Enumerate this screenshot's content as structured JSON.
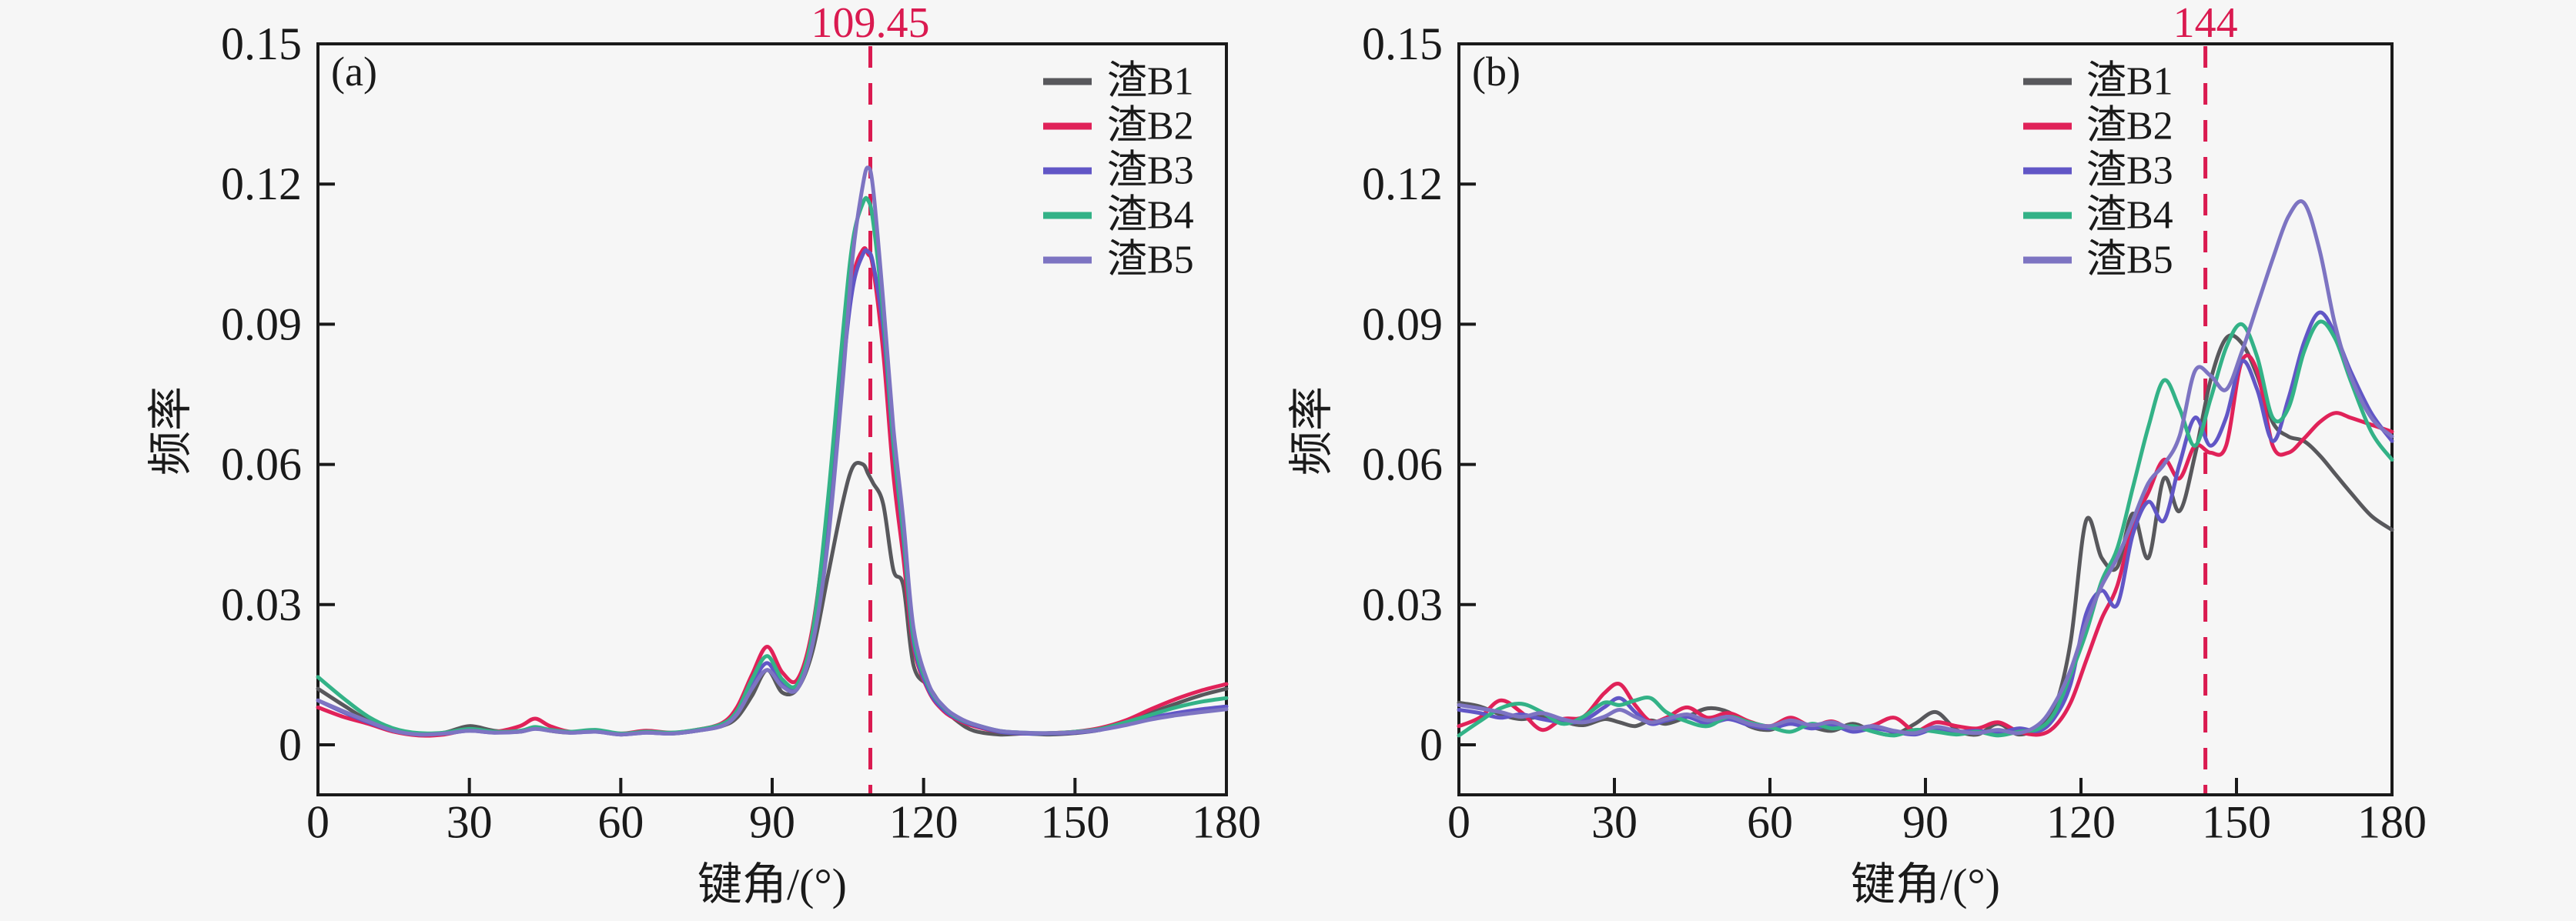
{
  "ui": {
    "background": "#f6f6f6",
    "text_color": "#1a1a1a",
    "frame_color": "#1a1a1a",
    "reference_line_color": "#da1a50"
  },
  "chart_data": [
    {
      "type": "line",
      "panel_label": "(a)",
      "xlabel": "键角/(°)",
      "ylabel": "频率",
      "xlim": [
        0,
        180
      ],
      "ylim": [
        -0.011,
        0.15
      ],
      "x_ticks": [
        0,
        30,
        60,
        90,
        120,
        150,
        180
      ],
      "y_ticks": [
        0,
        0.03,
        0.06,
        0.09,
        0.12,
        0.15
      ],
      "y_tick_labels": [
        "0",
        "0.03",
        "0.06",
        "0.09",
        "0.12",
        "0.15"
      ],
      "grid": false,
      "legend_position": "upper-right-inside",
      "annotation": {
        "text": "109.45",
        "x": 109.45,
        "color": "#da1a50",
        "style": "dashed-vertical-line"
      },
      "x": [
        0,
        5,
        10,
        15,
        20,
        25,
        30,
        35,
        40,
        43,
        46,
        50,
        55,
        60,
        65,
        70,
        75,
        80,
        83,
        86,
        89,
        92,
        95,
        98,
        101,
        104,
        106,
        108,
        109,
        110,
        112,
        114,
        116,
        118,
        121,
        124,
        127,
        130,
        135,
        140,
        145,
        150,
        155,
        160,
        165,
        170,
        175,
        180
      ],
      "series": [
        {
          "name": "渣B1",
          "color": "#58585c",
          "values": [
            0.012,
            0.0085,
            0.0052,
            0.003,
            0.0022,
            0.0026,
            0.004,
            0.003,
            0.0028,
            0.0036,
            0.003,
            0.0026,
            0.003,
            0.0022,
            0.0028,
            0.0024,
            0.003,
            0.004,
            0.0058,
            0.0105,
            0.016,
            0.0112,
            0.012,
            0.02,
            0.036,
            0.052,
            0.0595,
            0.06,
            0.058,
            0.056,
            0.0515,
            0.0375,
            0.034,
            0.017,
            0.0125,
            0.0078,
            0.0048,
            0.003,
            0.0022,
            0.0024,
            0.0022,
            0.0025,
            0.0032,
            0.0048,
            0.0068,
            0.0088,
            0.0106,
            0.012
          ]
        },
        {
          "name": "渣B2",
          "color": "#e02259",
          "values": [
            0.008,
            0.006,
            0.0045,
            0.0028,
            0.002,
            0.0022,
            0.0032,
            0.0028,
            0.004,
            0.0056,
            0.004,
            0.0028,
            0.003,
            0.0024,
            0.003,
            0.0026,
            0.0032,
            0.0046,
            0.008,
            0.015,
            0.021,
            0.0155,
            0.014,
            0.025,
            0.05,
            0.083,
            0.1,
            0.106,
            0.105,
            0.102,
            0.084,
            0.058,
            0.04,
            0.021,
            0.0115,
            0.0072,
            0.0052,
            0.004,
            0.0028,
            0.0024,
            0.0025,
            0.0028,
            0.0036,
            0.0052,
            0.0076,
            0.0098,
            0.0116,
            0.013
          ]
        },
        {
          "name": "渣B3",
          "color": "#6156c6",
          "values": [
            0.0095,
            0.007,
            0.0048,
            0.003,
            0.0022,
            0.0024,
            0.003,
            0.0026,
            0.003,
            0.0036,
            0.0032,
            0.0026,
            0.0028,
            0.0022,
            0.0026,
            0.0024,
            0.003,
            0.0042,
            0.007,
            0.013,
            0.0175,
            0.013,
            0.0125,
            0.023,
            0.046,
            0.08,
            0.098,
            0.105,
            0.1055,
            0.103,
            0.089,
            0.064,
            0.044,
            0.022,
            0.0118,
            0.0075,
            0.0054,
            0.0042,
            0.0028,
            0.0024,
            0.0024,
            0.0026,
            0.0032,
            0.0044,
            0.0058,
            0.0068,
            0.0076,
            0.0082
          ]
        },
        {
          "name": "渣B4",
          "color": "#33b287",
          "values": [
            0.0145,
            0.01,
            0.006,
            0.0035,
            0.0025,
            0.0026,
            0.0034,
            0.0028,
            0.003,
            0.0038,
            0.0032,
            0.0028,
            0.0032,
            0.0024,
            0.0028,
            0.0026,
            0.0032,
            0.0044,
            0.0072,
            0.014,
            0.019,
            0.014,
            0.013,
            0.024,
            0.052,
            0.088,
            0.108,
            0.116,
            0.1165,
            0.112,
            0.092,
            0.065,
            0.045,
            0.023,
            0.0125,
            0.008,
            0.0056,
            0.0044,
            0.003,
            0.0026,
            0.0025,
            0.0028,
            0.0034,
            0.0048,
            0.0064,
            0.008,
            0.0092,
            0.01
          ]
        },
        {
          "name": "渣B5",
          "color": "#7d74c2",
          "values": [
            0.0095,
            0.0072,
            0.005,
            0.003,
            0.0022,
            0.0024,
            0.003,
            0.0026,
            0.0028,
            0.0034,
            0.003,
            0.0026,
            0.0028,
            0.0022,
            0.0026,
            0.0024,
            0.003,
            0.004,
            0.0065,
            0.012,
            0.016,
            0.0125,
            0.012,
            0.0215,
            0.043,
            0.078,
            0.105,
            0.12,
            0.1235,
            0.119,
            0.095,
            0.068,
            0.048,
            0.025,
            0.013,
            0.0082,
            0.0058,
            0.0044,
            0.003,
            0.0026,
            0.0025,
            0.0027,
            0.0032,
            0.0042,
            0.0054,
            0.0063,
            0.007,
            0.0076
          ]
        }
      ]
    },
    {
      "type": "line",
      "panel_label": "(b)",
      "xlabel": "键角/(°)",
      "ylabel": "频率",
      "xlim": [
        0,
        180
      ],
      "ylim": [
        -0.011,
        0.15
      ],
      "x_ticks": [
        0,
        30,
        60,
        90,
        120,
        150,
        180
      ],
      "y_ticks": [
        0,
        0.03,
        0.06,
        0.09,
        0.12,
        0.15
      ],
      "y_tick_labels": [
        "0",
        "0.03",
        "0.06",
        "0.09",
        "0.12",
        "0.15"
      ],
      "grid": false,
      "legend_position": "upper-center-inside",
      "annotation": {
        "text": "144",
        "x": 144,
        "color": "#da1a50",
        "style": "dashed-vertical-line"
      },
      "x": [
        0,
        4,
        8,
        12,
        16,
        20,
        24,
        28,
        31,
        34,
        37,
        40,
        44,
        48,
        52,
        56,
        60,
        64,
        68,
        72,
        76,
        80,
        84,
        88,
        92,
        96,
        100,
        104,
        108,
        112,
        115,
        118,
        121,
        124,
        127,
        130,
        133,
        136,
        139,
        142,
        145,
        148,
        151,
        154,
        157,
        160,
        163,
        166,
        169,
        172,
        176,
        180
      ],
      "series": [
        {
          "name": "渣B1",
          "color": "#58585c",
          "values": [
            0.009,
            0.0082,
            0.0065,
            0.0055,
            0.006,
            0.005,
            0.0042,
            0.0055,
            0.0048,
            0.004,
            0.0052,
            0.0045,
            0.006,
            0.0078,
            0.007,
            0.004,
            0.0032,
            0.0048,
            0.0038,
            0.003,
            0.0045,
            0.0028,
            0.0022,
            0.0045,
            0.007,
            0.0032,
            0.0022,
            0.0045,
            0.0022,
            0.004,
            0.008,
            0.022,
            0.048,
            0.04,
            0.038,
            0.0495,
            0.04,
            0.057,
            0.05,
            0.062,
            0.078,
            0.087,
            0.086,
            0.079,
            0.069,
            0.066,
            0.065,
            0.062,
            0.058,
            0.054,
            0.049,
            0.046
          ]
        },
        {
          "name": "渣B2",
          "color": "#e02259",
          "values": [
            0.004,
            0.0058,
            0.0095,
            0.007,
            0.0032,
            0.0055,
            0.006,
            0.011,
            0.013,
            0.0085,
            0.005,
            0.0058,
            0.008,
            0.0058,
            0.0068,
            0.005,
            0.004,
            0.0058,
            0.004,
            0.005,
            0.0032,
            0.0042,
            0.0058,
            0.003,
            0.0048,
            0.004,
            0.0035,
            0.0048,
            0.0028,
            0.0022,
            0.004,
            0.009,
            0.018,
            0.027,
            0.034,
            0.047,
            0.054,
            0.061,
            0.057,
            0.064,
            0.0625,
            0.064,
            0.082,
            0.08,
            0.064,
            0.0625,
            0.0655,
            0.069,
            0.071,
            0.07,
            0.0685,
            0.067
          ]
        },
        {
          "name": "渣B3",
          "color": "#6156c6",
          "values": [
            0.0075,
            0.0068,
            0.0058,
            0.0065,
            0.0055,
            0.0048,
            0.0052,
            0.008,
            0.01,
            0.007,
            0.0045,
            0.0052,
            0.006,
            0.0045,
            0.0055,
            0.0042,
            0.0035,
            0.0045,
            0.0035,
            0.0042,
            0.0028,
            0.0035,
            0.0028,
            0.0022,
            0.0035,
            0.0028,
            0.003,
            0.0025,
            0.0035,
            0.003,
            0.006,
            0.013,
            0.028,
            0.033,
            0.03,
            0.045,
            0.052,
            0.048,
            0.06,
            0.07,
            0.064,
            0.07,
            0.082,
            0.076,
            0.065,
            0.074,
            0.086,
            0.0925,
            0.088,
            0.08,
            0.071,
            0.065
          ]
        },
        {
          "name": "渣B4",
          "color": "#33b287",
          "values": [
            0.002,
            0.005,
            0.0078,
            0.0088,
            0.007,
            0.0045,
            0.006,
            0.009,
            0.0085,
            0.0095,
            0.01,
            0.007,
            0.005,
            0.004,
            0.006,
            0.0048,
            0.0038,
            0.0028,
            0.0045,
            0.0035,
            0.004,
            0.0028,
            0.002,
            0.0032,
            0.0028,
            0.0022,
            0.0028,
            0.002,
            0.0028,
            0.0035,
            0.007,
            0.015,
            0.024,
            0.035,
            0.042,
            0.055,
            0.068,
            0.078,
            0.072,
            0.064,
            0.074,
            0.085,
            0.09,
            0.083,
            0.07,
            0.072,
            0.084,
            0.0905,
            0.087,
            0.078,
            0.067,
            0.061
          ]
        },
        {
          "name": "渣B5",
          "color": "#7d74c2",
          "values": [
            0.0085,
            0.0078,
            0.007,
            0.006,
            0.0068,
            0.0055,
            0.0048,
            0.006,
            0.0075,
            0.006,
            0.0048,
            0.0055,
            0.0065,
            0.0052,
            0.006,
            0.0045,
            0.004,
            0.0052,
            0.0042,
            0.0048,
            0.0035,
            0.004,
            0.003,
            0.0025,
            0.0038,
            0.003,
            0.0025,
            0.0032,
            0.0025,
            0.0045,
            0.009,
            0.016,
            0.026,
            0.034,
            0.04,
            0.048,
            0.056,
            0.06,
            0.066,
            0.08,
            0.079,
            0.076,
            0.084,
            0.094,
            0.104,
            0.113,
            0.116,
            0.106,
            0.09,
            0.079,
            0.07,
            0.066
          ]
        }
      ]
    }
  ]
}
